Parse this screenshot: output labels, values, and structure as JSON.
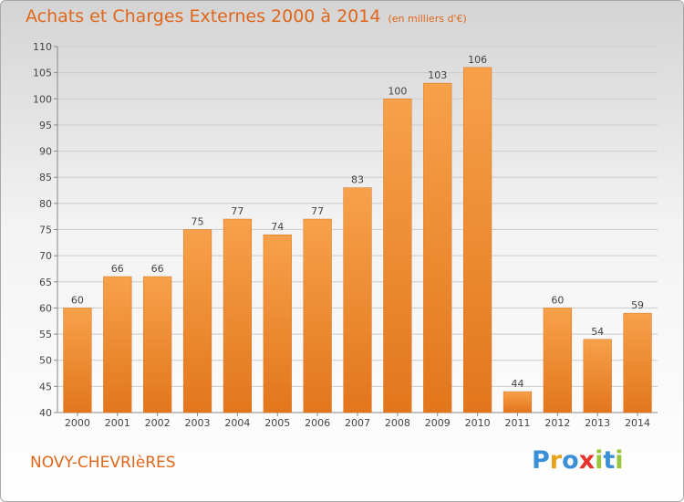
{
  "title": "Achats et Charges Externes 2000 à 2014",
  "unit_note": "(en milliers d'€)",
  "town": "NOVY-CHEVRIèRES",
  "logo": {
    "letters": [
      "P",
      "r",
      "o",
      "x",
      "i",
      "t",
      "i"
    ],
    "colors": [
      "#3a8fd6",
      "#e8a21b",
      "#3a8fd6",
      "#e8322b",
      "#9ac43c",
      "#3a8fd6",
      "#9ac43c"
    ]
  },
  "colors": {
    "accent": "#e0661a",
    "bar_light": "#f7a14a",
    "bar_dark": "#e2761d",
    "grid": "#cccccc"
  },
  "chart_data": {
    "type": "bar",
    "categories": [
      "2000",
      "2001",
      "2002",
      "2003",
      "2004",
      "2005",
      "2006",
      "2007",
      "2008",
      "2009",
      "2010",
      "2011",
      "2012",
      "2013",
      "2014"
    ],
    "values": [
      60,
      66,
      66,
      75,
      77,
      74,
      77,
      83,
      100,
      103,
      106,
      44,
      60,
      54,
      59
    ],
    "ylim": [
      40,
      110
    ],
    "yticks": [
      40,
      45,
      50,
      55,
      60,
      65,
      70,
      75,
      80,
      85,
      90,
      95,
      100,
      105,
      110
    ],
    "grid": true,
    "data_labels": true
  }
}
